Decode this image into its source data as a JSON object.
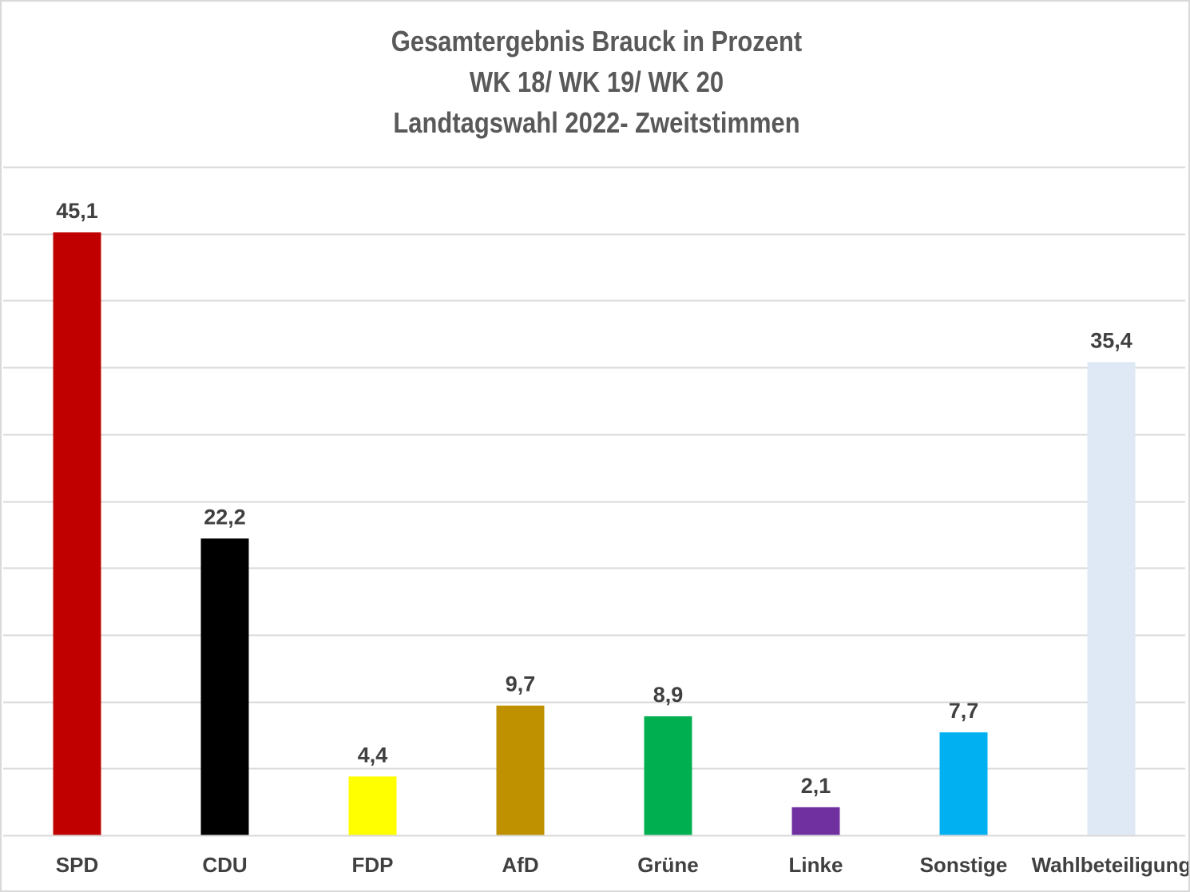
{
  "chart_data": {
    "type": "bar",
    "title": [
      "Gesamtergebnis Brauck in Prozent",
      "WK 18/ WK 19/ WK 20",
      "Landtagswahl 2022- Zweitstimmen"
    ],
    "categories": [
      "SPD",
      "CDU",
      "FDP",
      "AfD",
      "Grüne",
      "Linke",
      "Sonstige",
      "Wahlbeteiligung"
    ],
    "values": [
      45.1,
      22.2,
      4.4,
      9.7,
      8.9,
      2.1,
      7.7,
      35.4
    ],
    "value_labels": [
      "45,1",
      "22,2",
      "4,4",
      "9,7",
      "8,9",
      "2,1",
      "7,7",
      "35,4"
    ],
    "colors": [
      "#c00000",
      "#000000",
      "#ffff00",
      "#bf9000",
      "#00b050",
      "#7030a0",
      "#00b0f0",
      "#dee9f5"
    ],
    "ylim": [
      0,
      50
    ],
    "grid": true,
    "gridline_step": 5,
    "legend": "none",
    "xlabel": "",
    "ylabel": ""
  }
}
